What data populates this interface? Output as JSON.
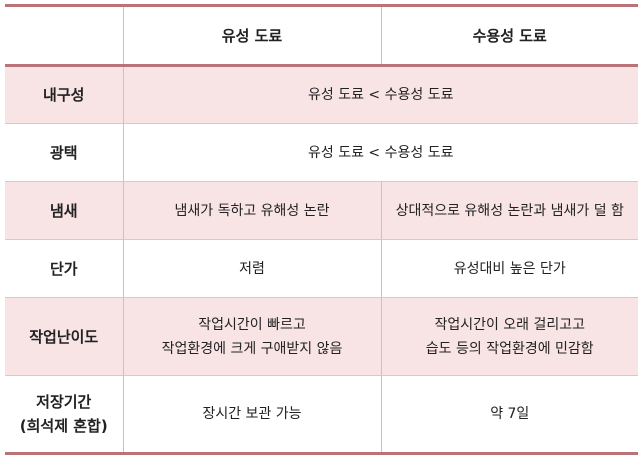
{
  "header": {
    "corner": "",
    "col1": "유성 도료",
    "col2": "수용성 도료"
  },
  "rows": [
    {
      "label": "내구성",
      "merged": "유성 도료 < 수용성 도료"
    },
    {
      "label": "광택",
      "merged": "유성 도료 < 수용성 도료"
    },
    {
      "label": "냄새",
      "col1": "냄새가 독하고 유해성 논란",
      "col2": "상대적으로 유해성 논란과 냄새가 덜 함"
    },
    {
      "label": "단가",
      "col1": "저렴",
      "col2": "유성대비 높은 단가"
    },
    {
      "label": "작업난이도",
      "col1_l1": "작업시간이 빠르고",
      "col1_l2": "작업환경에 크게 구애받지 않음",
      "col2_l1": "작업시간이 오래 걸리고고",
      "col2_l2": "습도 등의 작업환경에 민감함"
    },
    {
      "label_l1": "저장기간",
      "label_l2": "(희석제 혼합)",
      "col1": "장시간 보관 가능",
      "col2": "약 7일"
    }
  ],
  "colors": {
    "border": "#b87479",
    "row_highlight": "#f8e4e5"
  }
}
